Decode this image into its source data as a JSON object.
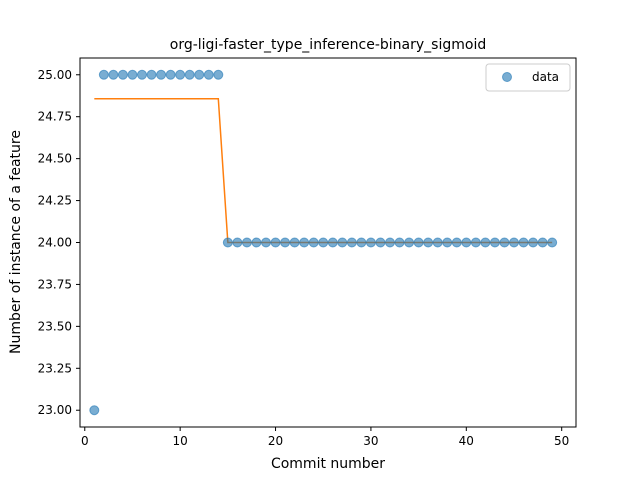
{
  "chart_data": {
    "type": "scatter",
    "title": "org-ligi-faster_type_inference-binary_sigmoid",
    "xlabel": "Commit number",
    "ylabel": "Number of instance of a feature",
    "xlim": [
      -0.5,
      51.5
    ],
    "ylim": [
      22.9,
      25.1
    ],
    "x_ticks": [
      0,
      10,
      20,
      30,
      40,
      50
    ],
    "y_ticks": [
      23.0,
      23.25,
      23.5,
      23.75,
      24.0,
      24.25,
      24.5,
      24.75,
      25.0
    ],
    "x_tick_labels": [
      "0",
      "10",
      "20",
      "30",
      "40",
      "50"
    ],
    "y_tick_labels": [
      "23.00",
      "23.25",
      "23.50",
      "23.75",
      "24.00",
      "24.25",
      "24.50",
      "24.75",
      "25.00"
    ],
    "grid": false,
    "legend_position": "top-right",
    "series": [
      {
        "name": "data",
        "kind": "scatter",
        "color": "#1f77b4",
        "x": [
          1,
          2,
          3,
          4,
          5,
          6,
          7,
          8,
          9,
          10,
          11,
          12,
          13,
          14,
          15,
          16,
          17,
          18,
          19,
          20,
          21,
          22,
          23,
          24,
          25,
          26,
          27,
          28,
          29,
          30,
          31,
          32,
          33,
          34,
          35,
          36,
          37,
          38,
          39,
          40,
          41,
          42,
          43,
          44,
          45,
          46,
          47,
          48,
          49
        ],
        "y": [
          23,
          25,
          25,
          25,
          25,
          25,
          25,
          25,
          25,
          25,
          25,
          25,
          25,
          25,
          24,
          24,
          24,
          24,
          24,
          24,
          24,
          24,
          24,
          24,
          24,
          24,
          24,
          24,
          24,
          24,
          24,
          24,
          24,
          24,
          24,
          24,
          24,
          24,
          24,
          24,
          24,
          24,
          24,
          24,
          24,
          24,
          24,
          24,
          24
        ]
      },
      {
        "kind": "line",
        "color": "#ff7f0e",
        "x": [
          1,
          14,
          15,
          49
        ],
        "y": [
          24.857,
          24.857,
          24.0,
          24.0
        ]
      }
    ]
  }
}
